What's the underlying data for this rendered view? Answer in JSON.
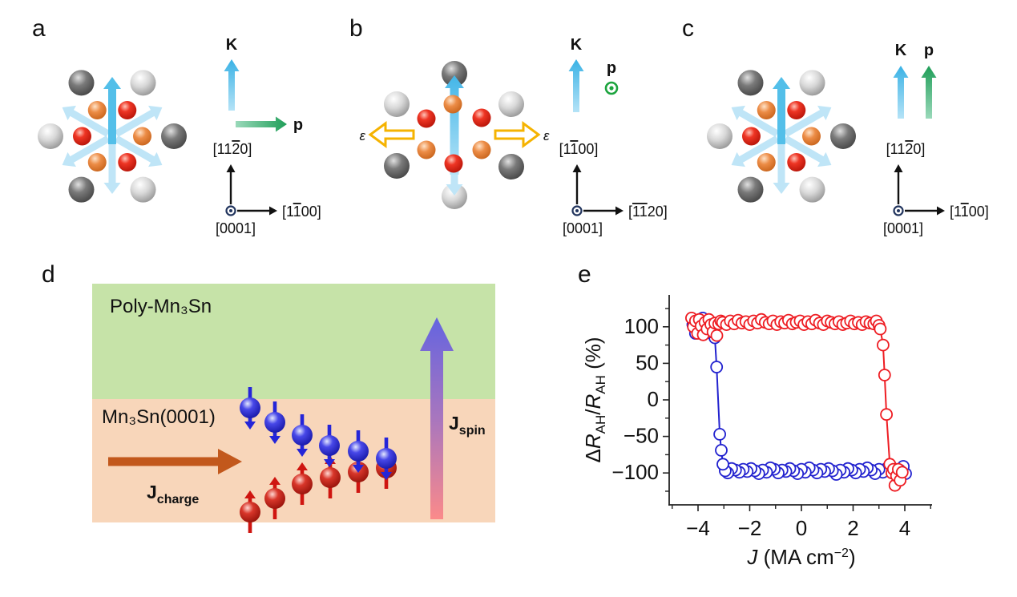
{
  "figure": {
    "panel_letters": {
      "a": "a",
      "b": "b",
      "c": "c",
      "d": "d",
      "e": "e"
    }
  },
  "panels": {
    "a": {
      "k": "K",
      "p": "p",
      "axis_up": {
        "pre": "[11",
        "ov": "2",
        "post": "0]"
      },
      "axis_right": {
        "pre": "[1",
        "ov": "1",
        "post": "00]"
      },
      "axis_out": "[0001]"
    },
    "b": {
      "k": "K",
      "p": "p",
      "strain_left": "ε",
      "strain_right": "ε",
      "axis_up": {
        "pre": "[1",
        "ov": "1",
        "post": "00]"
      },
      "axis_right": {
        "pre": "[",
        "ov": "11",
        "post": "20]"
      },
      "axis_out": "[0001]"
    },
    "c": {
      "k": "K",
      "p": "p",
      "axis_up": {
        "pre": "[11",
        "ov": "2",
        "post": "0]"
      },
      "axis_right": {
        "pre": "[1",
        "ov": "1",
        "post": "00]"
      },
      "axis_out": "[0001]"
    },
    "d": {
      "top_layer": "Poly-Mn₃Sn",
      "bottom_layer": "Mn₃Sn(0001)",
      "j_charge_main": "J",
      "j_charge_sub": "charge",
      "j_spin_main": "J",
      "j_spin_sub": "spin"
    }
  },
  "colors": {
    "cluster_arrow_light": "#bfe5f7",
    "cluster_arrow_main": "#53bfe9",
    "strain_outline": "#f5b301",
    "axis_ink": "#22355e",
    "out_of_plane_green": "#1ca43e",
    "layer_top_bg": "#c6e3a8",
    "layer_bottom_bg": "#f8d6ba",
    "j_charge": "#c2581c",
    "spin_up": "#cf1510",
    "spin_down": "#2525d8",
    "series_red": "#ee1d23",
    "series_blue": "#2222cf"
  },
  "chart_data": {
    "type": "scatter",
    "title": "",
    "xlabel_parts": {
      "var": "J",
      "mid": " (MA cm",
      "sup": "−2",
      "end": ")"
    },
    "ylabel_parts": {
      "delta": "Δ",
      "r1": "R",
      "sub1": "AH",
      "slash": "/",
      "r2": "R",
      "sub2": "AH",
      "unit": " (%)"
    },
    "xlim": [
      -5.1,
      5.0
    ],
    "ylim": [
      -145,
      145
    ],
    "xticks": [
      -4,
      -2,
      0,
      2,
      4
    ],
    "xtick_labels": [
      "−4",
      "−2",
      "0",
      "2",
      "4"
    ],
    "xminor": [
      -5,
      -3,
      -1,
      1,
      3,
      5
    ],
    "yticks": [
      100,
      50,
      0,
      -50,
      -100
    ],
    "ytick_labels": [
      "100",
      "50",
      "0",
      "−50",
      "−100"
    ],
    "yminor": [
      125,
      75,
      25,
      -25,
      -75,
      -125
    ],
    "grid": false,
    "legend": "none",
    "series": [
      {
        "name": "sweep_negative_to_positive",
        "color": "#2222cf",
        "points": [
          [
            4.03,
            -101
          ],
          [
            3.94,
            -91
          ],
          [
            3.8,
            -96
          ],
          [
            3.68,
            -99
          ],
          [
            3.55,
            -94
          ],
          [
            3.45,
            -97
          ],
          [
            3.3,
            -94
          ],
          [
            3.15,
            -99
          ],
          [
            3.0,
            -95
          ],
          [
            2.85,
            -101
          ],
          [
            2.7,
            -96
          ],
          [
            2.55,
            -93
          ],
          [
            2.4,
            -98
          ],
          [
            2.25,
            -95
          ],
          [
            2.1,
            -100
          ],
          [
            1.95,
            -96
          ],
          [
            1.8,
            -94
          ],
          [
            1.65,
            -99
          ],
          [
            1.5,
            -96
          ],
          [
            1.35,
            -102
          ],
          [
            1.2,
            -97
          ],
          [
            1.05,
            -94
          ],
          [
            0.9,
            -98
          ],
          [
            0.75,
            -95
          ],
          [
            0.6,
            -100
          ],
          [
            0.45,
            -96
          ],
          [
            0.3,
            -93
          ],
          [
            0.15,
            -99
          ],
          [
            0.0,
            -95
          ],
          [
            -0.15,
            -101
          ],
          [
            -0.3,
            -97
          ],
          [
            -0.45,
            -94
          ],
          [
            -0.6,
            -98
          ],
          [
            -0.75,
            -96
          ],
          [
            -0.9,
            -100
          ],
          [
            -1.05,
            -95
          ],
          [
            -1.2,
            -93
          ],
          [
            -1.35,
            -99
          ],
          [
            -1.5,
            -96
          ],
          [
            -1.65,
            -101
          ],
          [
            -1.8,
            -97
          ],
          [
            -1.95,
            -94
          ],
          [
            -2.1,
            -98
          ],
          [
            -2.25,
            -95
          ],
          [
            -2.4,
            -99
          ],
          [
            -2.55,
            -96
          ],
          [
            -2.7,
            -94
          ],
          [
            -2.85,
            -100
          ],
          [
            -2.95,
            -97
          ],
          [
            -3.04,
            -88
          ],
          [
            -3.1,
            -69
          ],
          [
            -3.16,
            -47
          ],
          [
            -3.28,
            45
          ],
          [
            -3.35,
            85
          ],
          [
            -3.45,
            95
          ],
          [
            -3.55,
            108
          ],
          [
            -3.63,
            92
          ],
          [
            -3.72,
            104
          ],
          [
            -3.82,
            112
          ],
          [
            -3.9,
            99
          ],
          [
            -4.0,
            107
          ],
          [
            -4.1,
            91
          ],
          [
            -4.2,
            103
          ]
        ]
      },
      {
        "name": "sweep_positive_to_negative",
        "color": "#ee1d23",
        "points": [
          [
            -4.25,
            112
          ],
          [
            -4.18,
            100
          ],
          [
            -4.1,
            108
          ],
          [
            -4.02,
            91
          ],
          [
            -3.95,
            110
          ],
          [
            -3.88,
            101
          ],
          [
            -3.8,
            89
          ],
          [
            -3.73,
            106
          ],
          [
            -3.65,
            97
          ],
          [
            -3.58,
            110
          ],
          [
            -3.5,
            103
          ],
          [
            -3.42,
            93
          ],
          [
            -3.35,
            105
          ],
          [
            -3.27,
            88
          ],
          [
            -3.2,
            104
          ],
          [
            -3.12,
            108
          ],
          [
            -3.05,
            106
          ],
          [
            -2.9,
            103
          ],
          [
            -2.75,
            108
          ],
          [
            -2.6,
            104
          ],
          [
            -2.45,
            109
          ],
          [
            -2.3,
            105
          ],
          [
            -2.15,
            107
          ],
          [
            -2.0,
            103
          ],
          [
            -1.85,
            108
          ],
          [
            -1.7,
            105
          ],
          [
            -1.55,
            110
          ],
          [
            -1.4,
            106
          ],
          [
            -1.25,
            104
          ],
          [
            -1.1,
            108
          ],
          [
            -0.95,
            103
          ],
          [
            -0.8,
            107
          ],
          [
            -0.65,
            105
          ],
          [
            -0.5,
            109
          ],
          [
            -0.35,
            104
          ],
          [
            -0.2,
            106
          ],
          [
            -0.05,
            108
          ],
          [
            0.1,
            103
          ],
          [
            0.25,
            107
          ],
          [
            0.4,
            104
          ],
          [
            0.55,
            109
          ],
          [
            0.7,
            105
          ],
          [
            0.85,
            103
          ],
          [
            1.0,
            108
          ],
          [
            1.15,
            106
          ],
          [
            1.3,
            104
          ],
          [
            1.45,
            107
          ],
          [
            1.6,
            103
          ],
          [
            1.75,
            105
          ],
          [
            1.9,
            108
          ],
          [
            2.05,
            104
          ],
          [
            2.2,
            106
          ],
          [
            2.35,
            103
          ],
          [
            2.5,
            107
          ],
          [
            2.65,
            105
          ],
          [
            2.8,
            104
          ],
          [
            2.9,
            108
          ],
          [
            3.0,
            102
          ],
          [
            3.05,
            97
          ],
          [
            3.16,
            75
          ],
          [
            3.22,
            34
          ],
          [
            3.29,
            -20
          ],
          [
            3.42,
            -88
          ],
          [
            3.5,
            -100
          ],
          [
            3.56,
            -95
          ],
          [
            3.62,
            -117
          ],
          [
            3.68,
            -104
          ],
          [
            3.75,
            -95
          ],
          [
            3.82,
            -110
          ],
          [
            3.9,
            -99
          ]
        ]
      }
    ]
  }
}
